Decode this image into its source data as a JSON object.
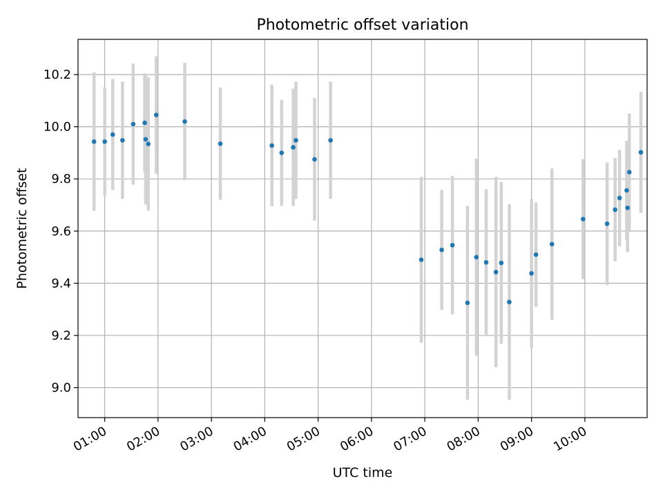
{
  "chart_data": {
    "type": "scatter",
    "title": "Photometric offset variation",
    "xlabel": "UTC time",
    "ylabel": "Photometric offset",
    "xlim": [
      "00:30",
      "11:10"
    ],
    "ylim": [
      8.885,
      10.335
    ],
    "x_ticks": [
      "01:00",
      "02:00",
      "03:00",
      "04:00",
      "05:00",
      "06:00",
      "07:00",
      "08:00",
      "09:00",
      "10:00"
    ],
    "y_ticks": [
      9.0,
      9.2,
      9.4,
      9.6,
      9.8,
      10.0,
      10.2
    ],
    "y_tick_labels": [
      "9.0",
      "9.2",
      "9.4",
      "9.6",
      "9.8",
      "10.0",
      "10.2"
    ],
    "grid": true,
    "legend": "none",
    "colors": {
      "points": "#1f77b4",
      "error_bars": "#d3d3d3",
      "grid": "#b0b0b0"
    },
    "series": [
      {
        "points": [
          {
            "t": "00:48",
            "y": 9.943,
            "err": 0.265
          },
          {
            "t": "01:00",
            "y": 9.943,
            "err": 0.208
          },
          {
            "t": "01:09",
            "y": 9.97,
            "err": 0.213
          },
          {
            "t": "01:20",
            "y": 9.948,
            "err": 0.225
          },
          {
            "t": "01:32",
            "y": 10.01,
            "err": 0.232
          },
          {
            "t": "01:45",
            "y": 10.015,
            "err": 0.19
          },
          {
            "t": "01:46",
            "y": 9.952,
            "err": 0.25
          },
          {
            "t": "01:49",
            "y": 9.934,
            "err": 0.255
          },
          {
            "t": "01:58",
            "y": 10.045,
            "err": 0.225
          },
          {
            "t": "02:30",
            "y": 10.02,
            "err": 0.225
          },
          {
            "t": "03:10",
            "y": 9.935,
            "err": 0.215
          },
          {
            "t": "04:08",
            "y": 9.928,
            "err": 0.233
          },
          {
            "t": "04:19",
            "y": 9.9,
            "err": 0.203
          },
          {
            "t": "04:32",
            "y": 9.921,
            "err": 0.225
          },
          {
            "t": "04:35",
            "y": 9.948,
            "err": 0.225
          },
          {
            "t": "04:56",
            "y": 9.875,
            "err": 0.235
          },
          {
            "t": "05:14",
            "y": 9.948,
            "err": 0.225
          },
          {
            "t": "06:56",
            "y": 9.49,
            "err": 0.318
          },
          {
            "t": "07:19",
            "y": 9.528,
            "err": 0.23
          },
          {
            "t": "07:31",
            "y": 9.546,
            "err": 0.265
          },
          {
            "t": "07:48",
            "y": 9.325,
            "err": 0.372
          },
          {
            "t": "07:58",
            "y": 9.5,
            "err": 0.378
          },
          {
            "t": "08:09",
            "y": 9.48,
            "err": 0.28
          },
          {
            "t": "08:20",
            "y": 9.443,
            "err": 0.365
          },
          {
            "t": "08:26",
            "y": 9.478,
            "err": 0.31
          },
          {
            "t": "08:35",
            "y": 9.328,
            "err": 0.375
          },
          {
            "t": "09:00",
            "y": 9.438,
            "err": 0.285
          },
          {
            "t": "09:05",
            "y": 9.51,
            "err": 0.2
          },
          {
            "t": "09:23",
            "y": 9.55,
            "err": 0.29
          },
          {
            "t": "09:58",
            "y": 9.646,
            "err": 0.23
          },
          {
            "t": "10:25",
            "y": 9.628,
            "err": 0.235
          },
          {
            "t": "10:34",
            "y": 9.682,
            "err": 0.198
          },
          {
            "t": "10:39",
            "y": 9.727,
            "err": 0.185
          },
          {
            "t": "10:47",
            "y": 9.756,
            "err": 0.19
          },
          {
            "t": "10:48",
            "y": 9.689,
            "err": 0.17
          },
          {
            "t": "10:50",
            "y": 9.826,
            "err": 0.225
          },
          {
            "t": "11:03",
            "y": 9.902,
            "err": 0.232
          }
        ]
      }
    ]
  }
}
